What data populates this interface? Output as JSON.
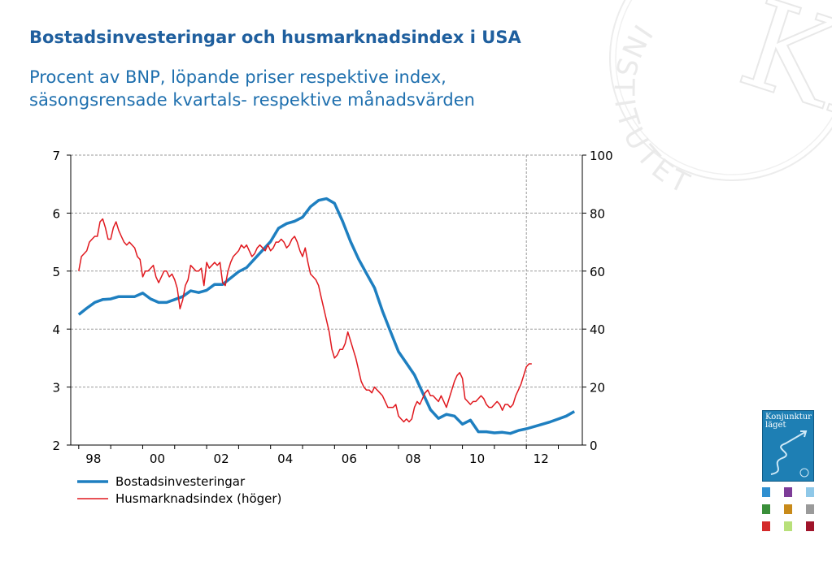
{
  "title": "Bostadsinvesteringar och husmarknadsindex i USA",
  "subtitle_lines": [
    "Procent av BNP, löpande priser respektive index,",
    "säsongsrensade kvartals- respektive månadsvärden"
  ],
  "watermark": {
    "text": "INSTITUTET",
    "monogram": "KI"
  },
  "report_cover": {
    "title_line1": "Konjunktur",
    "title_line2": "läget",
    "thumb_colors": [
      "#2f8fd0",
      "#7d3c98",
      "#8fc8e8",
      "#3a8f3a",
      "#c88a1a",
      "#9a9a9a",
      "#d42a2a",
      "#b8e07a",
      "#a0142a"
    ]
  },
  "colors": {
    "series_invest": "#1e7fc0",
    "series_house": "#e0181e",
    "grid": "#9a9a9a",
    "title": "#1f5f9e",
    "subtitle": "#1e6fae"
  },
  "chart_data": {
    "type": "line",
    "title": "Bostadsinvesteringar och husmarknadsindex i USA",
    "grid": true,
    "legend_position": "bottom-left",
    "x_ticks": [
      "98",
      "00",
      "02",
      "04",
      "06",
      "08",
      "10",
      "12"
    ],
    "x_tick_years": [
      1998,
      2000,
      2002,
      2004,
      2006,
      2008,
      2010,
      2012
    ],
    "xlim": [
      1997.75,
      2013.75
    ],
    "vertical_marker_year": 2012.0,
    "y_left": {
      "lim": [
        2,
        7
      ],
      "ticks": [
        2,
        3,
        4,
        5,
        6,
        7
      ]
    },
    "y_right": {
      "lim": [
        0,
        100
      ],
      "ticks": [
        0,
        20,
        40,
        60,
        80,
        100
      ]
    },
    "series": [
      {
        "name": "Bostadsinvesteringar",
        "axis": "left",
        "x": [
          1998.0,
          1998.25,
          1998.5,
          1998.75,
          1999.0,
          1999.25,
          1999.5,
          1999.75,
          2000.0,
          2000.25,
          2000.5,
          2000.75,
          2001.0,
          2001.25,
          2001.5,
          2001.75,
          2002.0,
          2002.25,
          2002.5,
          2002.75,
          2003.0,
          2003.25,
          2003.5,
          2003.75,
          2004.0,
          2004.25,
          2004.5,
          2004.75,
          2005.0,
          2005.25,
          2005.5,
          2005.75,
          2006.0,
          2006.25,
          2006.5,
          2006.75,
          2007.0,
          2007.25,
          2007.5,
          2007.75,
          2008.0,
          2008.25,
          2008.5,
          2008.75,
          2009.0,
          2009.25,
          2009.5,
          2009.75,
          2010.0,
          2010.25,
          2010.5,
          2010.75,
          2011.0,
          2011.25,
          2011.5,
          2011.75,
          2012.0,
          2012.25,
          2012.5,
          2012.75,
          2013.0,
          2013.25,
          2013.5
        ],
        "values": [
          4.25,
          4.36,
          4.46,
          4.51,
          4.52,
          4.56,
          4.56,
          4.56,
          4.62,
          4.52,
          4.46,
          4.46,
          4.51,
          4.56,
          4.66,
          4.63,
          4.67,
          4.77,
          4.77,
          4.88,
          4.99,
          5.06,
          5.21,
          5.36,
          5.51,
          5.74,
          5.82,
          5.86,
          5.93,
          6.11,
          6.22,
          6.25,
          6.17,
          5.86,
          5.51,
          5.21,
          4.96,
          4.71,
          4.31,
          3.96,
          3.61,
          3.41,
          3.21,
          2.91,
          2.61,
          2.46,
          2.53,
          2.5,
          2.36,
          2.43,
          2.23,
          2.23,
          2.21,
          2.22,
          2.2,
          2.25,
          2.28,
          2.32,
          2.36,
          2.4,
          2.45,
          2.5,
          2.58
        ]
      },
      {
        "name": "Husmarknadsindex (höger)",
        "axis": "right",
        "x": [
          1998.0,
          1998.083,
          1998.167,
          1998.25,
          1998.333,
          1998.417,
          1998.5,
          1998.583,
          1998.667,
          1998.75,
          1998.833,
          1998.917,
          1999.0,
          1999.083,
          1999.167,
          1999.25,
          1999.333,
          1999.417,
          1999.5,
          1999.583,
          1999.667,
          1999.75,
          1999.833,
          1999.917,
          2000.0,
          2000.083,
          2000.167,
          2000.25,
          2000.333,
          2000.417,
          2000.5,
          2000.583,
          2000.667,
          2000.75,
          2000.833,
          2000.917,
          2001.0,
          2001.083,
          2001.167,
          2001.25,
          2001.333,
          2001.417,
          2001.5,
          2001.583,
          2001.667,
          2001.75,
          2001.833,
          2001.917,
          2002.0,
          2002.083,
          2002.167,
          2002.25,
          2002.333,
          2002.417,
          2002.5,
          2002.583,
          2002.667,
          2002.75,
          2002.833,
          2002.917,
          2003.0,
          2003.083,
          2003.167,
          2003.25,
          2003.333,
          2003.417,
          2003.5,
          2003.583,
          2003.667,
          2003.75,
          2003.833,
          2003.917,
          2004.0,
          2004.083,
          2004.167,
          2004.25,
          2004.333,
          2004.417,
          2004.5,
          2004.583,
          2004.667,
          2004.75,
          2004.833,
          2004.917,
          2005.0,
          2005.083,
          2005.167,
          2005.25,
          2005.333,
          2005.417,
          2005.5,
          2005.583,
          2005.667,
          2005.75,
          2005.833,
          2005.917,
          2006.0,
          2006.083,
          2006.167,
          2006.25,
          2006.333,
          2006.417,
          2006.5,
          2006.583,
          2006.667,
          2006.75,
          2006.833,
          2006.917,
          2007.0,
          2007.083,
          2007.167,
          2007.25,
          2007.333,
          2007.417,
          2007.5,
          2007.583,
          2007.667,
          2007.75,
          2007.833,
          2007.917,
          2008.0,
          2008.083,
          2008.167,
          2008.25,
          2008.333,
          2008.417,
          2008.5,
          2008.583,
          2008.667,
          2008.75,
          2008.833,
          2008.917,
          2009.0,
          2009.083,
          2009.167,
          2009.25,
          2009.333,
          2009.417,
          2009.5,
          2009.583,
          2009.667,
          2009.75,
          2009.833,
          2009.917,
          2010.0,
          2010.083,
          2010.167,
          2010.25,
          2010.333,
          2010.417,
          2010.5,
          2010.583,
          2010.667,
          2010.75,
          2010.833,
          2010.917,
          2011.0,
          2011.083,
          2011.167,
          2011.25,
          2011.333,
          2011.417,
          2011.5,
          2011.583,
          2011.667,
          2011.75,
          2011.833,
          2011.917,
          2012.0,
          2012.083,
          2012.167
        ],
        "values": [
          60,
          65,
          66,
          67,
          70,
          71,
          72,
          72,
          77,
          78,
          75,
          71,
          71,
          75,
          77,
          74,
          72,
          70,
          69,
          70,
          69,
          68,
          65,
          64,
          58,
          60,
          60,
          61,
          62,
          58,
          56,
          58,
          60,
          60,
          58,
          59,
          57,
          54,
          47,
          50,
          55,
          57,
          62,
          61,
          60,
          60,
          61,
          55,
          63,
          61,
          62,
          63,
          62,
          63,
          56,
          55,
          60,
          63,
          65,
          66,
          67,
          69,
          68,
          69,
          67,
          65,
          66,
          68,
          69,
          68,
          67,
          69,
          67,
          68,
          70,
          70,
          71,
          70,
          68,
          69,
          71,
          72,
          70,
          67,
          65,
          68,
          63,
          59,
          58,
          57,
          55,
          51,
          47,
          43,
          39,
          33,
          30,
          31,
          33,
          33,
          35,
          39,
          36,
          33,
          30,
          26,
          22,
          20,
          19,
          19,
          18,
          20,
          19,
          18,
          17,
          15,
          13,
          13,
          13,
          14,
          10,
          9,
          8,
          9,
          8,
          9,
          13,
          15,
          14,
          16,
          18,
          19,
          17,
          17,
          16,
          15,
          17,
          15,
          13,
          16,
          19,
          22,
          24,
          25,
          23,
          16,
          15,
          14,
          15,
          15,
          16,
          17,
          16,
          14,
          13,
          13,
          14,
          15,
          14,
          12,
          14,
          14,
          13,
          14,
          17,
          19,
          21,
          24,
          27,
          28,
          28
        ]
      }
    ]
  }
}
